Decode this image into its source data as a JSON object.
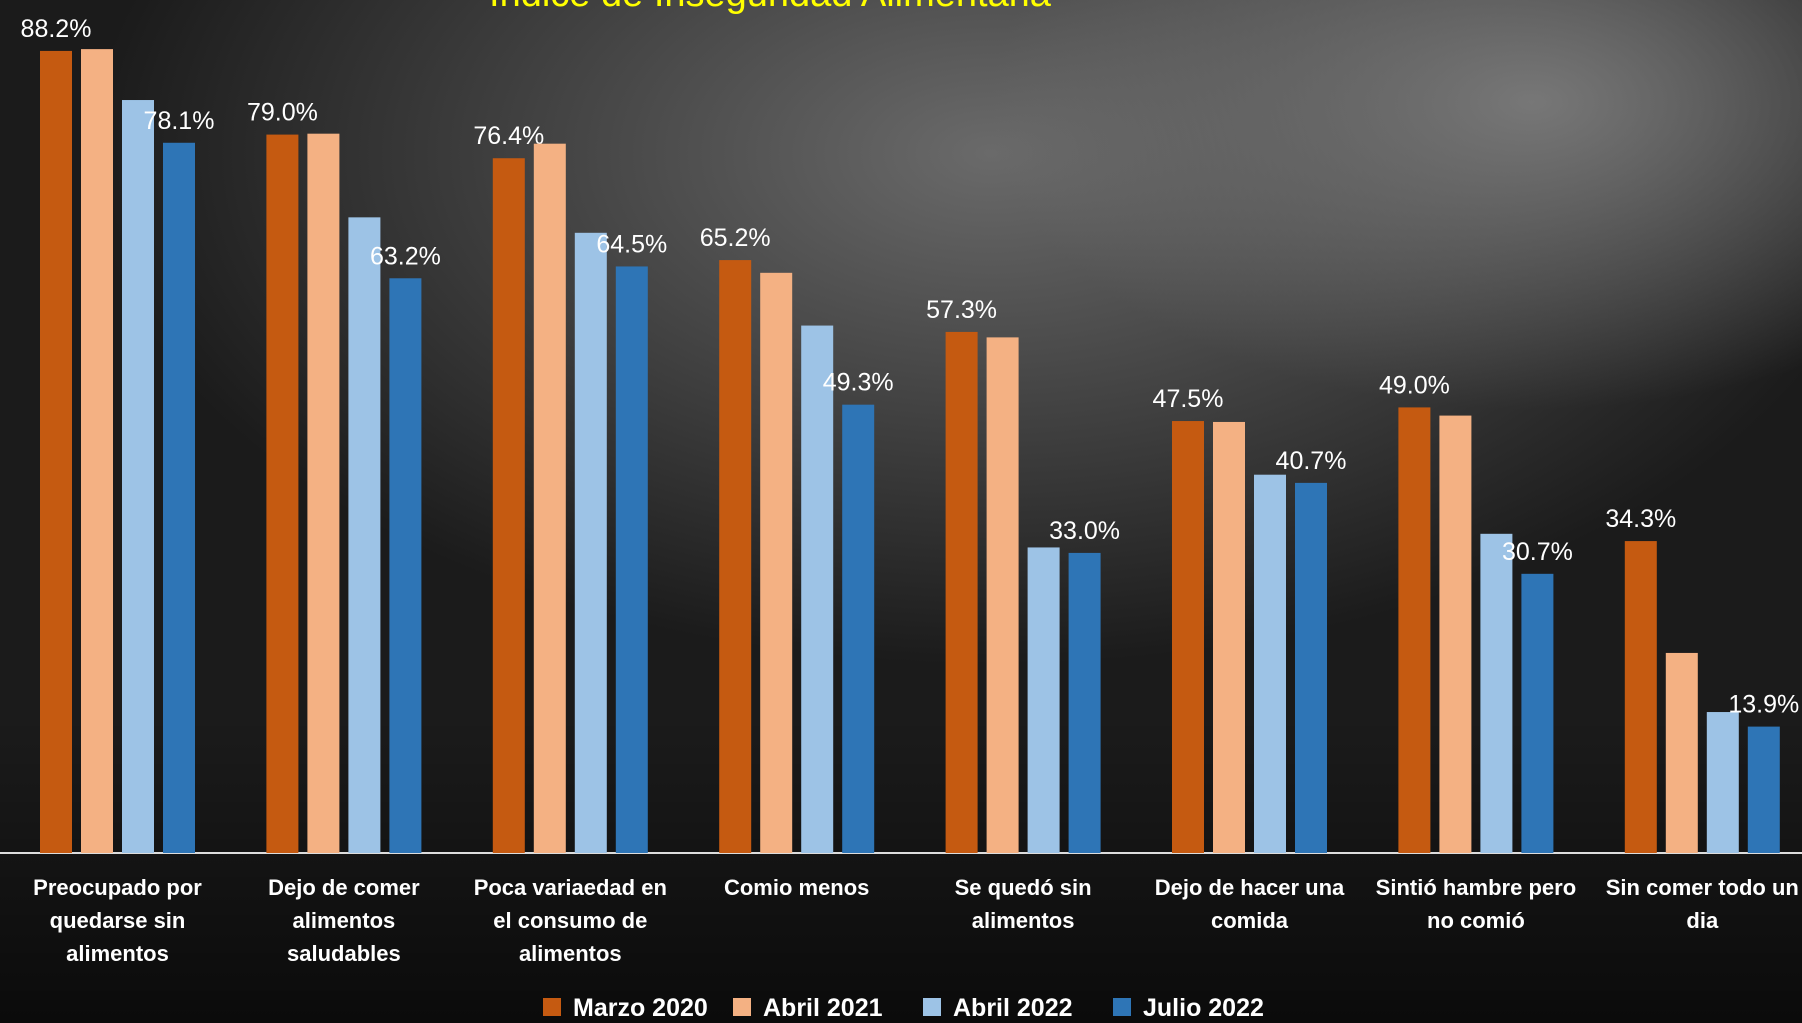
{
  "chart_data": {
    "type": "bar",
    "title": "Índice de Inseguridad Alimentaria",
    "categories": [
      "Preocupado por quedarse sin alimentos",
      "Dejo de comer alimentos saludables",
      "Poca variaedad en el consumo de alimentos",
      "Comio menos",
      "Se quedó sin alimentos",
      "Dejo de hacer una comida",
      "Sintió hambre pero no comió",
      "Sin comer todo un dia"
    ],
    "series": [
      {
        "name": "Marzo 2020",
        "color": "#c55a11",
        "values": [
          88.2,
          79.0,
          76.4,
          65.2,
          57.3,
          47.5,
          49.0,
          34.3
        ],
        "value_labels": [
          "88.2%",
          "79.0%",
          "76.4%",
          "65.2%",
          "57.3%",
          "47.5%",
          "49.0%",
          "34.3%"
        ]
      },
      {
        "name": "Abril 2021",
        "color": "#f4b183",
        "values": [
          88.4,
          79.1,
          78.0,
          63.8,
          56.7,
          47.4,
          48.1,
          22.0
        ],
        "value_labels": [
          null,
          null,
          null,
          null,
          null,
          null,
          null,
          null
        ]
      },
      {
        "name": "Abril 2022",
        "color": "#9dc3e6",
        "values": [
          82.8,
          69.9,
          68.2,
          58.0,
          33.6,
          41.6,
          35.1,
          15.5
        ],
        "value_labels": [
          null,
          null,
          null,
          null,
          null,
          null,
          null,
          null
        ]
      },
      {
        "name": "Julio 2022",
        "color": "#2e75b6",
        "values": [
          78.1,
          63.2,
          64.5,
          49.3,
          33.0,
          40.7,
          30.7,
          13.9
        ],
        "value_labels": [
          "78.1%",
          "63.2%",
          "64.5%",
          "49.3%",
          "33.0%",
          "40.7%",
          "30.7%",
          "13.9%"
        ]
      }
    ],
    "ylim": [
      0,
      93.8
    ],
    "legend": "bottom"
  }
}
